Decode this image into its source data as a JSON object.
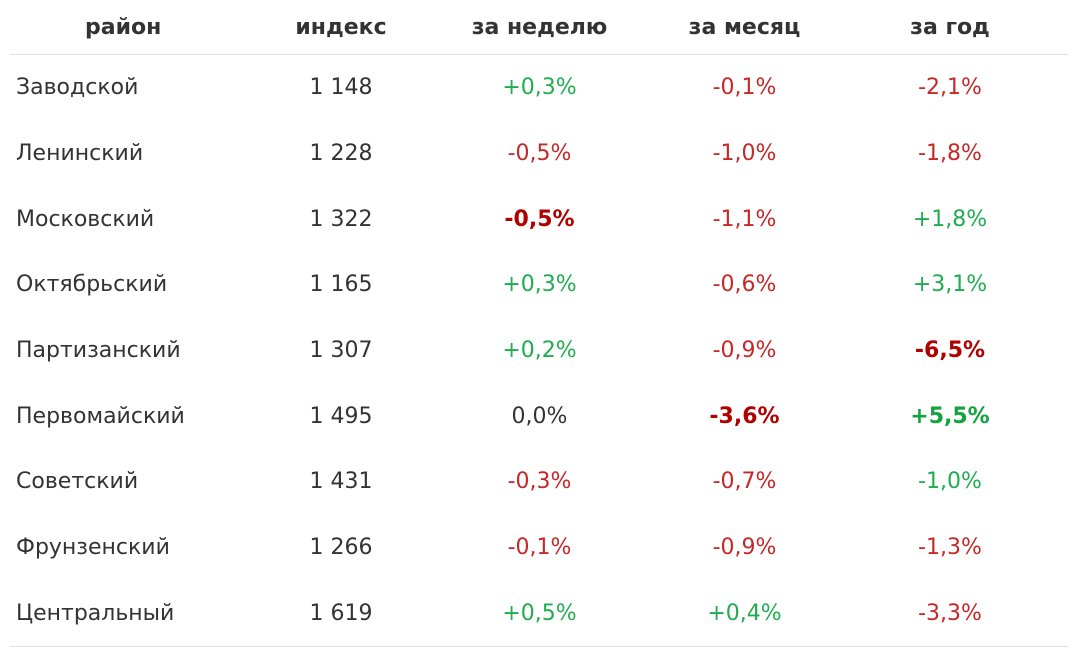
{
  "table": {
    "headers": {
      "district": "район",
      "index": "индекс",
      "week": "за неделю",
      "month": "за месяц",
      "year": "за год"
    },
    "rows": [
      {
        "district": "Заводской",
        "index": "1 148",
        "week": "+0,3%",
        "month": "-0,1%",
        "year": "-2,1%"
      },
      {
        "district": "Ленинский",
        "index": "1 228",
        "week": "-0,5%",
        "month": "-1,0%",
        "year": "-1,8%"
      },
      {
        "district": "Московский",
        "index": "1 322",
        "week": "-0,5%",
        "month": "-1,1%",
        "year": "+1,8%"
      },
      {
        "district": "Октябрьский",
        "index": "1 165",
        "week": "+0,3%",
        "month": "-0,6%",
        "year": "+3,1%"
      },
      {
        "district": "Партизанский",
        "index": "1 307",
        "week": "+0,2%",
        "month": "-0,9%",
        "year": "-6,5%"
      },
      {
        "district": "Первомайский",
        "index": "1 495",
        "week": "0,0%",
        "month": "-3,6%",
        "year": "+5,5%"
      },
      {
        "district": "Советский",
        "index": "1 431",
        "week": "-0,3%",
        "month": "-0,7%",
        "year": "-1,0%"
      },
      {
        "district": "Фрунзенский",
        "index": "1 266",
        "week": "-0,1%",
        "month": "-0,9%",
        "year": "-1,3%"
      },
      {
        "district": "Центральный",
        "index": "1 619",
        "week": "+0,5%",
        "month": "+0,4%",
        "year": "-3,3%"
      }
    ],
    "emphasized": {
      "week": [
        "Московский"
      ],
      "month": [
        "Первомайский"
      ],
      "year": [
        "Партизанский",
        "Первомайский"
      ]
    },
    "special_colors": {
      "Советский.year": "positive"
    }
  },
  "colors": {
    "text": "#333333",
    "positive": "#1fad4f",
    "negative": "#c62828",
    "strong_negative": "#b00000",
    "strong_positive": "#12a33f",
    "divider": "#e0e0e0"
  }
}
